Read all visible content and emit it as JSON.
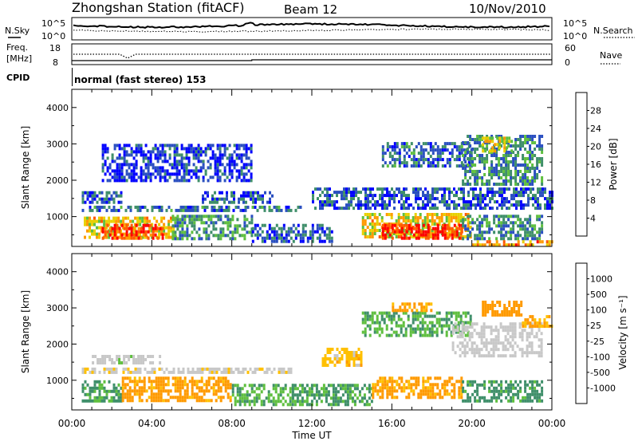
{
  "header": {
    "station_title": "Zhongshan Station (fitACF)",
    "beam": "Beam 12",
    "date": "10/Nov/2010"
  },
  "noise_panel": {
    "left_label": "N.Sky",
    "right_label": "N.Search",
    "left_ticks": [
      "10^5",
      "10^0"
    ],
    "right_ticks": [
      "10^5",
      "10^0"
    ]
  },
  "freq_panel": {
    "left_label_line1": "Freq.",
    "left_label_line2": "[MHz]",
    "right_label": "Nave",
    "left_ticks": [
      "18",
      "8"
    ],
    "right_ticks": [
      "60",
      "0"
    ]
  },
  "cpid_panel": {
    "label": "CPID",
    "text": "normal (fast stereo) 153"
  },
  "colors": {
    "power": [
      "#0000ff",
      "#2a4fc0",
      "#3f8f6a",
      "#5fbf3f",
      "#e8d000",
      "#ff9a00",
      "#ff5a00",
      "#ff0000"
    ],
    "velocity": [
      "#ff0000",
      "#ff5a00",
      "#ff9a00",
      "#ffc000",
      "#c8c8c8",
      "#5fbf3f",
      "#3f8f6a",
      "#2a4fc0",
      "#0000ff"
    ]
  },
  "x_axis": {
    "label": "Time UT",
    "ticks": [
      "00:00",
      "04:00",
      "08:00",
      "12:00",
      "16:00",
      "20:00",
      "00:00"
    ]
  },
  "chart_data": [
    {
      "type": "heatmap",
      "name": "power",
      "ylabel": "Slant Range [km]",
      "xlabel": "Time UT",
      "ylim": [
        180,
        4500
      ],
      "xlim": [
        0,
        24
      ],
      "y_ticks": [
        1000,
        2000,
        3000,
        4000
      ],
      "colorbar_label": "Power [dB]",
      "colorbar_ticks": [
        "4",
        "8",
        "12",
        "16",
        "20",
        "24",
        "28"
      ],
      "colorbar_range": [
        0,
        30
      ],
      "regions": [
        {
          "t0": 0.6,
          "t1": 5.2,
          "r0": 400,
          "r1": 1000,
          "v": 18
        },
        {
          "t0": 1.5,
          "t1": 4.5,
          "r0": 420,
          "r1": 800,
          "v": 26
        },
        {
          "t0": 5.0,
          "t1": 9.0,
          "r0": 350,
          "r1": 1050,
          "v": 10
        },
        {
          "t0": 0.5,
          "t1": 11.5,
          "r0": 1200,
          "r1": 1300,
          "v": 8
        },
        {
          "t0": 0.5,
          "t1": 2.5,
          "r0": 1400,
          "r1": 1700,
          "v": 6
        },
        {
          "t0": 6.5,
          "t1": 10.0,
          "r0": 1350,
          "r1": 1700,
          "v": 6
        },
        {
          "t0": 9.0,
          "t1": 13.0,
          "r0": 300,
          "r1": 800,
          "v": 6
        },
        {
          "t0": 12.0,
          "t1": 24.0,
          "r0": 1200,
          "r1": 1800,
          "v": 6
        },
        {
          "t0": 14.5,
          "t1": 20.0,
          "r0": 400,
          "r1": 1100,
          "v": 18
        },
        {
          "t0": 15.5,
          "t1": 19.5,
          "r0": 420,
          "r1": 800,
          "v": 28
        },
        {
          "t0": 19.5,
          "t1": 23.5,
          "r0": 400,
          "r1": 1050,
          "v": 9
        },
        {
          "t0": 15.5,
          "t1": 20.0,
          "r0": 2400,
          "r1": 3050,
          "v": 7
        },
        {
          "t0": 19.5,
          "t1": 23.5,
          "r0": 1900,
          "r1": 3250,
          "v": 9
        },
        {
          "t0": 20.5,
          "t1": 22.0,
          "r0": 2800,
          "r1": 3200,
          "v": 16
        },
        {
          "t0": 1.5,
          "t1": 9.0,
          "r0": 2000,
          "r1": 3000,
          "v": 4
        },
        {
          "t0": 20.0,
          "t1": 24.0,
          "r0": 200,
          "r1": 350,
          "v": 22
        }
      ]
    },
    {
      "type": "heatmap",
      "name": "velocity",
      "ylabel": "Slant Range [km]",
      "xlabel": "Time UT",
      "ylim": [
        180,
        4500
      ],
      "xlim": [
        0,
        24
      ],
      "y_ticks": [
        1000,
        2000,
        3000,
        4000
      ],
      "colorbar_label": "Velocity [m s⁻¹]",
      "colorbar_ticks": [
        "-1000",
        "-500",
        "-100",
        "-25",
        "25",
        "100",
        "500",
        "1000"
      ],
      "colorbar_range": [
        -1200,
        1200
      ],
      "regions": [
        {
          "t0": 0.5,
          "t1": 2.5,
          "r0": 400,
          "r1": 1000,
          "v": 120
        },
        {
          "t0": 2.5,
          "t1": 8.0,
          "r0": 450,
          "r1": 1100,
          "v": -150
        },
        {
          "t0": 8.0,
          "t1": 11.0,
          "r0": 300,
          "r1": 900,
          "v": 80
        },
        {
          "t0": 0.5,
          "t1": 11.0,
          "r0": 1200,
          "r1": 1350,
          "v": -10
        },
        {
          "t0": 1.0,
          "t1": 4.5,
          "r0": 1450,
          "r1": 1700,
          "v": 5
        },
        {
          "t0": 11.0,
          "t1": 15.0,
          "r0": 300,
          "r1": 900,
          "v": 120
        },
        {
          "t0": 15.0,
          "t1": 19.5,
          "r0": 500,
          "r1": 1100,
          "v": -150
        },
        {
          "t0": 19.5,
          "t1": 23.5,
          "r0": 400,
          "r1": 1000,
          "v": 150
        },
        {
          "t0": 14.5,
          "t1": 20.0,
          "r0": 2200,
          "r1": 2900,
          "v": 90
        },
        {
          "t0": 19.0,
          "t1": 23.5,
          "r0": 1700,
          "r1": 2600,
          "v": 0
        },
        {
          "t0": 20.5,
          "t1": 22.5,
          "r0": 2800,
          "r1": 3200,
          "v": -200
        },
        {
          "t0": 16.0,
          "t1": 18.0,
          "r0": 2900,
          "r1": 3150,
          "v": -150
        },
        {
          "t0": 22.5,
          "t1": 24.0,
          "r0": 2500,
          "r1": 2800,
          "v": -120
        },
        {
          "t0": 12.5,
          "t1": 14.5,
          "r0": 1400,
          "r1": 1900,
          "v": -60
        }
      ]
    }
  ]
}
